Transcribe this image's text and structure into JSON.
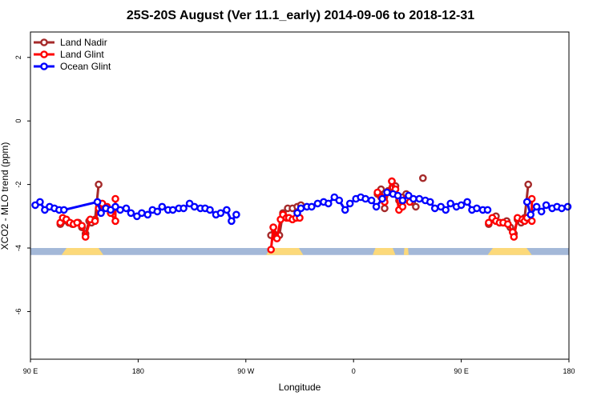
{
  "chart_data": {
    "type": "line",
    "title": "25S-20S August (Ver 11.1_early)   2014-09-06 to 2018-12-31",
    "xlabel": "Longitude",
    "ylabel": "XCO2 - MLO trend (ppm)",
    "x_ticks": [
      {
        "value": 90,
        "label": "90 E"
      },
      {
        "value": 180,
        "label": "180"
      },
      {
        "value": 270,
        "label": "90 W"
      },
      {
        "value": 360,
        "label": "0"
      },
      {
        "value": 450,
        "label": "90 E"
      },
      {
        "value": 540,
        "label": "180"
      }
    ],
    "y_ticks": [
      {
        "value": 2,
        "label": "2"
      },
      {
        "value": 0,
        "label": "0"
      },
      {
        "value": -2,
        "label": "-2"
      },
      {
        "value": -4,
        "label": "-4"
      },
      {
        "value": -6,
        "label": "-6"
      }
    ],
    "xlim": [
      90,
      540
    ],
    "ylim": [
      -7.5,
      2.8
    ],
    "legend_position": "top-left",
    "colors": {
      "land_nadir": "#a52a2a",
      "land_glint": "#ff0000",
      "ocean_glint": "#0000ff",
      "ocean_band": "#a3b8d8",
      "land_band": "#fcd97a"
    },
    "surface_band": {
      "y_range": [
        -4.22,
        -4.0
      ],
      "land_segments": [
        [
          116,
          151
        ],
        [
          287,
          318
        ],
        [
          376,
          395
        ],
        [
          402,
          406
        ],
        [
          472,
          509
        ]
      ]
    },
    "series": [
      {
        "name": "Land Nadir",
        "color": "#a52a2a",
        "points": [
          [
            115,
            -3.25
          ],
          [
            117,
            -3.15
          ],
          [
            119,
            -3.1
          ],
          [
            122,
            -3.2
          ],
          [
            125,
            -3.25
          ],
          [
            130,
            -3.2
          ],
          [
            133,
            -3.35
          ],
          [
            136,
            -3.55
          ],
          [
            139,
            -3.15
          ],
          [
            141,
            -3.2
          ],
          [
            144,
            -3.1
          ],
          [
            147,
            -2.0
          ],
          null,
          [
            291,
            -3.6
          ],
          [
            293,
            -3.35
          ],
          [
            296,
            -3.6
          ],
          [
            298,
            -3.6
          ],
          [
            301,
            -2.9
          ],
          [
            305,
            -2.75
          ],
          [
            309,
            -2.75
          ],
          [
            313,
            -2.7
          ],
          [
            316,
            -2.65
          ],
          null,
          [
            380,
            -2.3
          ],
          [
            383,
            -2.15
          ],
          [
            386,
            -2.75
          ],
          [
            389,
            -2.2
          ],
          [
            392,
            -1.9
          ],
          [
            395,
            -2.05
          ],
          [
            398,
            -2.5
          ],
          [
            401,
            -2.4
          ],
          [
            404,
            -2.3
          ],
          [
            406,
            -2.5
          ],
          [
            409,
            -2.55
          ],
          [
            412,
            -2.7
          ],
          null,
          [
            418,
            -1.8
          ],
          null,
          [
            473,
            -3.25
          ],
          [
            476,
            -3.1
          ],
          [
            479,
            -3.0
          ],
          [
            482,
            -3.2
          ],
          [
            485,
            -3.2
          ],
          [
            488,
            -3.15
          ],
          [
            491,
            -3.35
          ],
          [
            494,
            -3.55
          ],
          [
            497,
            -3.1
          ],
          [
            500,
            -3.2
          ],
          [
            503,
            -3.05
          ],
          [
            506,
            -2.0
          ]
        ]
      },
      {
        "name": "Land Glint",
        "color": "#ff0000",
        "points": [
          [
            115,
            -3.2
          ],
          [
            117,
            -3.05
          ],
          [
            120,
            -3.1
          ],
          [
            123,
            -3.2
          ],
          [
            126,
            -3.25
          ],
          [
            129,
            -3.2
          ],
          [
            133,
            -3.3
          ],
          [
            136,
            -3.65
          ],
          [
            140,
            -3.1
          ],
          [
            144,
            -3.15
          ],
          [
            147,
            -2.75
          ],
          [
            150,
            -2.6
          ],
          [
            154,
            -2.7
          ],
          [
            157,
            -2.9
          ],
          [
            161,
            -3.15
          ],
          [
            161,
            -2.45
          ],
          null,
          [
            291,
            -4.05
          ],
          [
            293,
            -3.35
          ],
          [
            296,
            -3.7
          ],
          [
            299,
            -3.1
          ],
          [
            301,
            -2.95
          ],
          [
            304,
            -3.05
          ],
          [
            306,
            -3.05
          ],
          [
            309,
            -3.1
          ],
          [
            312,
            -3.05
          ],
          [
            315,
            -3.05
          ],
          null,
          [
            380,
            -2.25
          ],
          [
            383,
            -2.4
          ],
          [
            386,
            -2.55
          ],
          [
            389,
            -2.25
          ],
          [
            392,
            -1.9
          ],
          [
            395,
            -2.15
          ],
          [
            398,
            -2.8
          ],
          [
            401,
            -2.7
          ],
          [
            404,
            -2.45
          ],
          [
            407,
            -2.55
          ],
          null,
          [
            473,
            -3.2
          ],
          [
            476,
            -3.05
          ],
          [
            479,
            -3.15
          ],
          [
            482,
            -3.2
          ],
          [
            485,
            -3.2
          ],
          [
            489,
            -3.25
          ],
          [
            493,
            -3.5
          ],
          [
            494,
            -3.65
          ],
          [
            497,
            -3.05
          ],
          [
            501,
            -3.1
          ],
          [
            503,
            -3.15
          ],
          [
            505,
            -3.05
          ],
          [
            509,
            -3.15
          ],
          [
            509,
            -2.45
          ]
        ]
      },
      {
        "name": "Ocean Glint",
        "color": "#0000ff",
        "points": [
          [
            94,
            -2.65
          ],
          [
            98,
            -2.55
          ],
          [
            102,
            -2.8
          ],
          [
            106,
            -2.7
          ],
          [
            110,
            -2.75
          ],
          [
            114,
            -2.8
          ],
          [
            118,
            -2.8
          ],
          [
            146,
            -2.55
          ],
          [
            149,
            -2.9
          ],
          [
            153,
            -2.75
          ],
          [
            157,
            -2.8
          ],
          [
            161,
            -2.7
          ],
          [
            165,
            -2.8
          ],
          [
            170,
            -2.75
          ],
          [
            174,
            -2.9
          ],
          [
            179,
            -3.0
          ],
          [
            183,
            -2.9
          ],
          [
            188,
            -2.95
          ],
          [
            192,
            -2.8
          ],
          [
            196,
            -2.85
          ],
          [
            200,
            -2.7
          ],
          [
            205,
            -2.8
          ],
          [
            209,
            -2.8
          ],
          [
            214,
            -2.75
          ],
          [
            218,
            -2.75
          ],
          [
            223,
            -2.6
          ],
          [
            227,
            -2.7
          ],
          [
            232,
            -2.75
          ],
          [
            236,
            -2.75
          ],
          [
            240,
            -2.8
          ],
          [
            245,
            -2.95
          ],
          [
            249,
            -2.9
          ],
          [
            254,
            -2.8
          ],
          [
            258,
            -3.15
          ],
          [
            262,
            -2.95
          ],
          null,
          [
            313,
            -2.9
          ],
          [
            316,
            -2.75
          ],
          [
            321,
            -2.7
          ],
          [
            325,
            -2.7
          ],
          [
            330,
            -2.6
          ],
          [
            335,
            -2.55
          ],
          [
            339,
            -2.6
          ],
          [
            344,
            -2.4
          ],
          [
            348,
            -2.5
          ],
          [
            353,
            -2.8
          ],
          [
            357,
            -2.6
          ],
          [
            362,
            -2.45
          ],
          [
            366,
            -2.4
          ],
          [
            370,
            -2.45
          ],
          [
            375,
            -2.5
          ],
          [
            379,
            -2.7
          ],
          [
            384,
            -2.45
          ],
          [
            388,
            -2.25
          ],
          [
            393,
            -2.3
          ],
          [
            397,
            -2.35
          ],
          [
            401,
            -2.5
          ],
          [
            406,
            -2.35
          ],
          [
            410,
            -2.45
          ],
          [
            415,
            -2.45
          ],
          [
            420,
            -2.5
          ],
          [
            424,
            -2.55
          ],
          [
            428,
            -2.75
          ],
          [
            433,
            -2.7
          ],
          [
            437,
            -2.8
          ],
          [
            441,
            -2.6
          ],
          [
            446,
            -2.7
          ],
          [
            450,
            -2.65
          ],
          [
            455,
            -2.55
          ],
          [
            459,
            -2.8
          ],
          [
            463,
            -2.75
          ],
          [
            468,
            -2.8
          ],
          [
            472,
            -2.8
          ],
          null,
          [
            505,
            -2.55
          ],
          [
            508,
            -2.95
          ],
          [
            513,
            -2.7
          ],
          [
            517,
            -2.85
          ],
          [
            521,
            -2.65
          ],
          [
            526,
            -2.75
          ],
          [
            530,
            -2.7
          ],
          [
            534,
            -2.75
          ],
          [
            539,
            -2.7
          ]
        ]
      }
    ]
  }
}
